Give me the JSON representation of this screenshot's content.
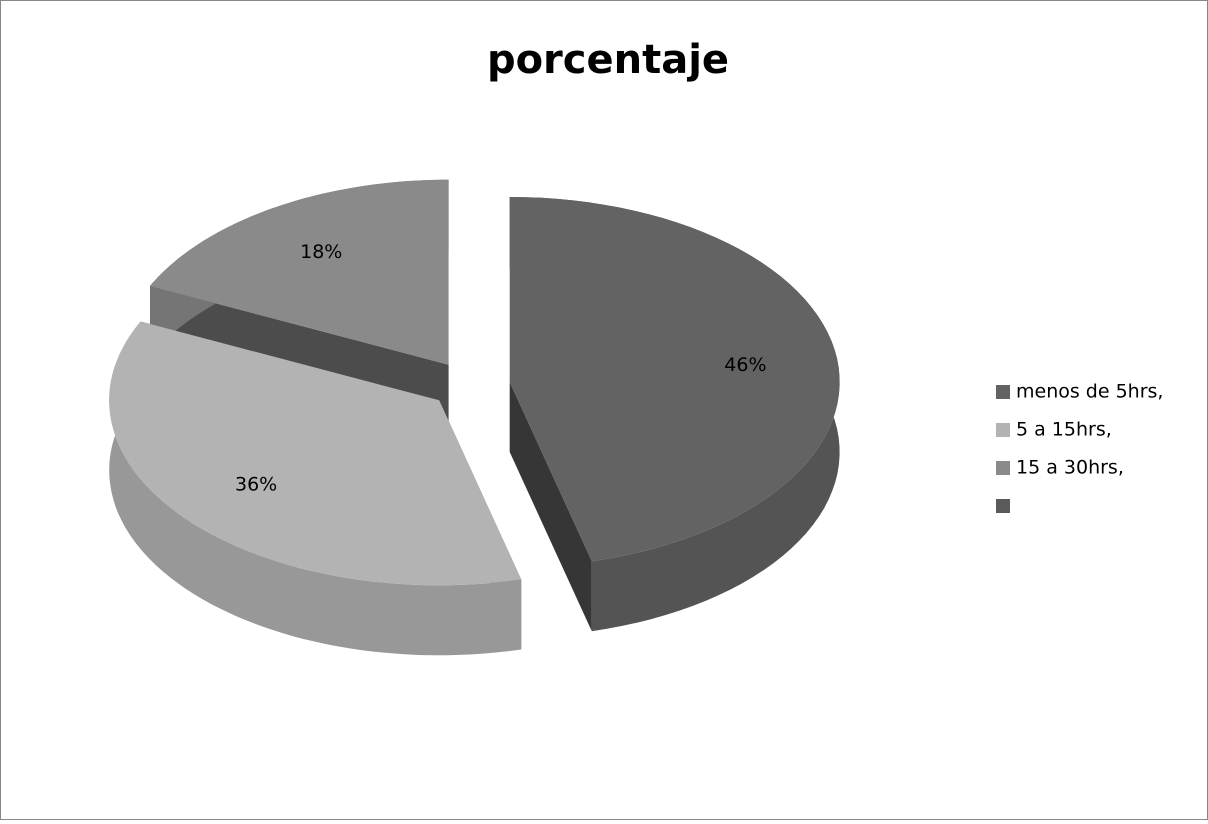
{
  "chart_data": {
    "type": "pie",
    "title": "porcentaje",
    "categories": [
      "menos de 5hrs,",
      "5 a 15hrs,",
      "15 a 30hrs,",
      null
    ],
    "values": [
      46,
      36,
      18,
      0
    ],
    "value_labels": [
      "46%",
      "36%",
      "18%",
      null
    ],
    "colors": [
      "#636363",
      "#b3b3b3",
      "#8a8a8a",
      "#5a5a5a"
    ],
    "legend": "right",
    "three_d": true,
    "exploded": true
  }
}
